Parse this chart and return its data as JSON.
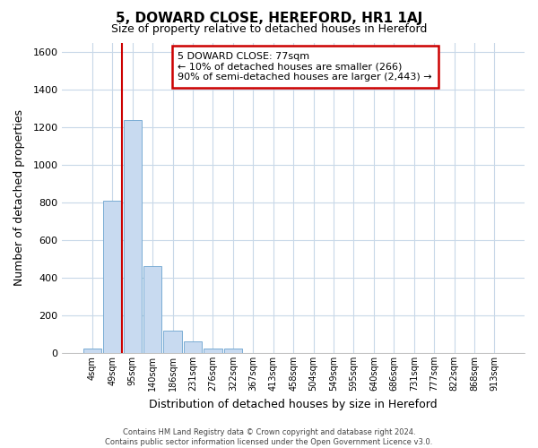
{
  "title": "5, DOWARD CLOSE, HEREFORD, HR1 1AJ",
  "subtitle": "Size of property relative to detached houses in Hereford",
  "xlabel": "Distribution of detached houses by size in Hereford",
  "ylabel": "Number of detached properties",
  "bar_labels": [
    "4sqm",
    "49sqm",
    "95sqm",
    "140sqm",
    "186sqm",
    "231sqm",
    "276sqm",
    "322sqm",
    "367sqm",
    "413sqm",
    "458sqm",
    "504sqm",
    "549sqm",
    "595sqm",
    "640sqm",
    "686sqm",
    "731sqm",
    "777sqm",
    "822sqm",
    "868sqm",
    "913sqm"
  ],
  "bar_values": [
    25,
    810,
    1240,
    460,
    120,
    62,
    22,
    25,
    0,
    0,
    0,
    0,
    0,
    0,
    0,
    0,
    0,
    0,
    0,
    0,
    0
  ],
  "bar_color": "#c8daf0",
  "bar_edge_color": "#7aadd4",
  "vline_color": "#cc0000",
  "ylim": [
    0,
    1650
  ],
  "yticks": [
    0,
    200,
    400,
    600,
    800,
    1000,
    1200,
    1400,
    1600
  ],
  "annotation_title": "5 DOWARD CLOSE: 77sqm",
  "annotation_line1": "← 10% of detached houses are smaller (266)",
  "annotation_line2": "90% of semi-detached houses are larger (2,443) →",
  "footer_line1": "Contains HM Land Registry data © Crown copyright and database right 2024.",
  "footer_line2": "Contains public sector information licensed under the Open Government Licence v3.0.",
  "background_color": "#ffffff",
  "grid_color": "#c8d8e8"
}
